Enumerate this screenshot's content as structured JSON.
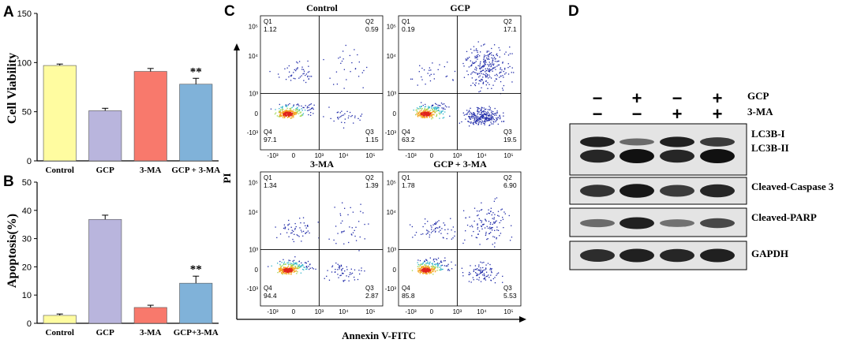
{
  "panels": {
    "A": "A",
    "B": "B",
    "C": "C",
    "D": "D"
  },
  "chart_data": [
    {
      "id": "A",
      "type": "bar",
      "title": "",
      "xlabel": "",
      "ylabel": "Cell Viability",
      "ylim": [
        0,
        150
      ],
      "yticks": [
        0,
        50,
        100,
        150
      ],
      "categories": [
        "Control",
        "GCP",
        "3-MA",
        "GCP + 3-MA"
      ],
      "values": [
        97,
        51,
        91,
        78
      ],
      "errors": [
        1.5,
        2.5,
        3,
        6
      ],
      "colors": [
        "#fffca0",
        "#b9b5dd",
        "#f8796c",
        "#80b2d9"
      ],
      "annotations": [
        {
          "category_index": 3,
          "text": "**"
        }
      ]
    },
    {
      "id": "B",
      "type": "bar",
      "title": "",
      "xlabel": "",
      "ylabel": "Apoptosis(%)",
      "ylim": [
        0,
        50
      ],
      "yticks": [
        0,
        10,
        20,
        30,
        40,
        50
      ],
      "categories": [
        "Control",
        "GCP",
        "3-MA",
        "GCP+3-MA"
      ],
      "values": [
        2.8,
        36.8,
        5.6,
        14.2
      ],
      "errors": [
        0.5,
        1.5,
        0.8,
        2.5
      ],
      "colors": [
        "#fffca0",
        "#b9b5dd",
        "#f8796c",
        "#80b2d9"
      ],
      "annotations": [
        {
          "category_index": 3,
          "text": "**"
        }
      ]
    },
    {
      "id": "C",
      "type": "scatter",
      "xlabel": "Annexin V-FITC",
      "ylabel": "PI",
      "xtick_labels": [
        "-10³",
        "0",
        "10³",
        "10⁴",
        "10⁵"
      ],
      "ytick_labels": [
        "10⁵",
        "10⁴",
        "10³",
        "0",
        "-10³"
      ],
      "plots": [
        {
          "title": "Control",
          "Q1": "1.12",
          "Q2": "0.59",
          "Q3": "1.15",
          "Q4": "97.1",
          "quad_labels": [
            "Q1",
            "Q2",
            "Q3",
            "Q4"
          ]
        },
        {
          "title": "GCP",
          "Q1": "0.19",
          "Q2": "17.1",
          "Q3": "19.5",
          "Q4": "63.2",
          "quad_labels": [
            "Q1",
            "Q2",
            "Q3",
            "Q4"
          ]
        },
        {
          "title": "3-MA",
          "Q1": "1.34",
          "Q2": "1.39",
          "Q3": "2.87",
          "Q4": "94.4",
          "quad_labels": [
            "Q1",
            "Q2",
            "Q3",
            "Q4"
          ]
        },
        {
          "title": "GCP + 3-MA",
          "Q1": "1.78",
          "Q2": "6.90",
          "Q3": "5.53",
          "Q4": "85.8",
          "quad_labels": [
            "Q1",
            "Q2",
            "Q3",
            "Q4"
          ]
        }
      ]
    }
  ],
  "western_blot": {
    "treatments": [
      {
        "name": "GCP",
        "signs": [
          "−",
          "+",
          "−",
          "+"
        ]
      },
      {
        "name": "3-MA",
        "signs": [
          "−",
          "−",
          "+",
          "+"
        ]
      }
    ],
    "bands": [
      {
        "label": "LC3B-I"
      },
      {
        "label": "LC3B-II"
      },
      {
        "label": "Cleaved-Caspase 3"
      },
      {
        "label": "Cleaved-PARP"
      },
      {
        "label": "GAPDH"
      }
    ],
    "intensities": {
      "LC3B-I": [
        0.9,
        0.35,
        0.9,
        0.7
      ],
      "LC3B-II": [
        0.85,
        1.0,
        0.85,
        1.0
      ],
      "Cleaved-Caspase 3": [
        0.75,
        0.95,
        0.7,
        0.85
      ],
      "Cleaved-PARP": [
        0.35,
        0.9,
        0.3,
        0.6
      ],
      "GAPDH": [
        0.8,
        0.9,
        0.85,
        0.9
      ]
    }
  },
  "colors": {
    "axis": "#000000",
    "band": "#111111"
  }
}
